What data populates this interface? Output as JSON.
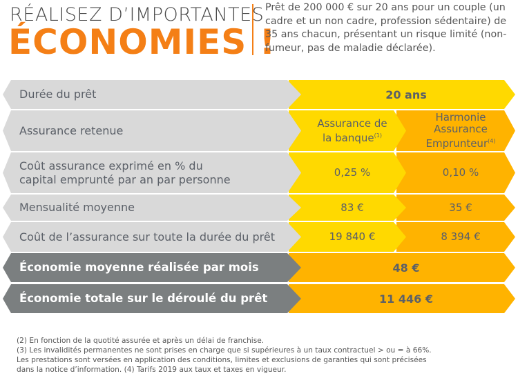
{
  "header": {
    "title_line1": "RÉALISEZ D’IMPORTANTES",
    "title_line2": "ÉCONOMIES !",
    "intro": "Prêt de 200 000 € sur 20 ans pour un couple (un cadre et un non cadre, profession sédentaire) de 35 ans chacun, présentant un risque limité (non-fumeur, pas de maladie déclarée)."
  },
  "colors": {
    "orange": "#f47f16",
    "yellow": "#ffd900",
    "amber": "#ffb300",
    "grey": "#d9d9d9",
    "dark_grey": "#7b7f80"
  },
  "table": {
    "duree": {
      "label": "Durée du prêt",
      "value": "20 ans"
    },
    "assurance": {
      "label": "Assurance retenue",
      "bank": "Assurance de la banque",
      "bank_note": "(1)",
      "harmonie": "Harmonie Assurance Emprunteur",
      "harmonie_note": "(4)"
    },
    "cout_pct": {
      "label": "Coût assurance exprimé en % du capital emprunté par an par personne",
      "bank": "0,25 %",
      "harmonie": "0,10 %"
    },
    "mensualite": {
      "label": "Mensualité moyenne",
      "bank": "83 €",
      "harmonie": "35 €"
    },
    "cout_total": {
      "label": "Coût de l’assurance sur toute la durée du prêt",
      "bank": "19 840 €",
      "harmonie": "8 394 €"
    },
    "eco_mois": {
      "label": "Économie moyenne réalisée par mois",
      "value": "48 €"
    },
    "eco_total": {
      "label": "Économie totale sur le déroulé du prêt",
      "value": "11 446 €"
    }
  },
  "footnotes": [
    "(2) En fonction de la quotité assurée et après un délai de franchise.",
    "(3) Les invalidités permanentes ne sont prises en charge que si supérieures à un taux contractuel > ou = à 66%.",
    "Les prestations sont versées en application des conditions, limites et exclusions de garanties qui sont précisées",
    "dans la notice d’information. (4) Tarifs 2019 aux taux et taxes en vigueur."
  ]
}
